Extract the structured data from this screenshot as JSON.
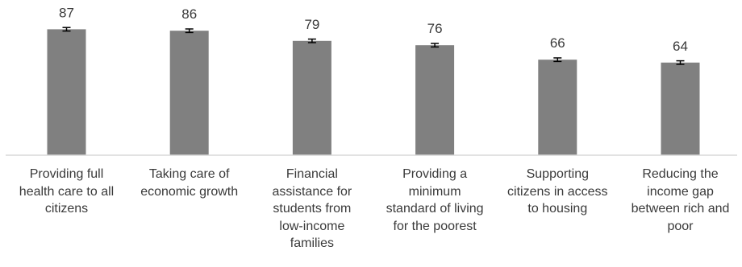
{
  "chart_data": {
    "type": "bar",
    "categories": [
      "Providing full health care to all citizens",
      "Taking care of economic growth",
      "Financial assistance for students from low-income families",
      "Providing a minimum standard of living for the poorest",
      "Supporting citizens in access to housing",
      "Reducing the income gap between rich and poor"
    ],
    "category_lines": [
      [
        "Providing full",
        "health care to all",
        "citizens"
      ],
      [
        "Taking care of",
        "economic growth"
      ],
      [
        "Financial",
        "assistance for",
        "students from",
        "low-income",
        "families"
      ],
      [
        "Providing a",
        "minimum",
        "standard of living",
        "for the poorest"
      ],
      [
        "Supporting",
        "citizens in access",
        "to housing"
      ],
      [
        "Reducing the",
        "income gap",
        "between rich and",
        "poor"
      ]
    ],
    "values": [
      87,
      86,
      79,
      76,
      66,
      64
    ],
    "value_labels": [
      "87",
      "86",
      "79",
      "76",
      "66",
      "64"
    ],
    "error_margin": 1.2,
    "ylim": [
      0,
      100
    ],
    "title": "",
    "xlabel": "",
    "ylabel": "",
    "grid": false,
    "legend": "none",
    "colors": {
      "bar": "#808080",
      "error_bar": "#000000",
      "axis": "#d9d9d9",
      "text": "#3a3a3a"
    }
  }
}
